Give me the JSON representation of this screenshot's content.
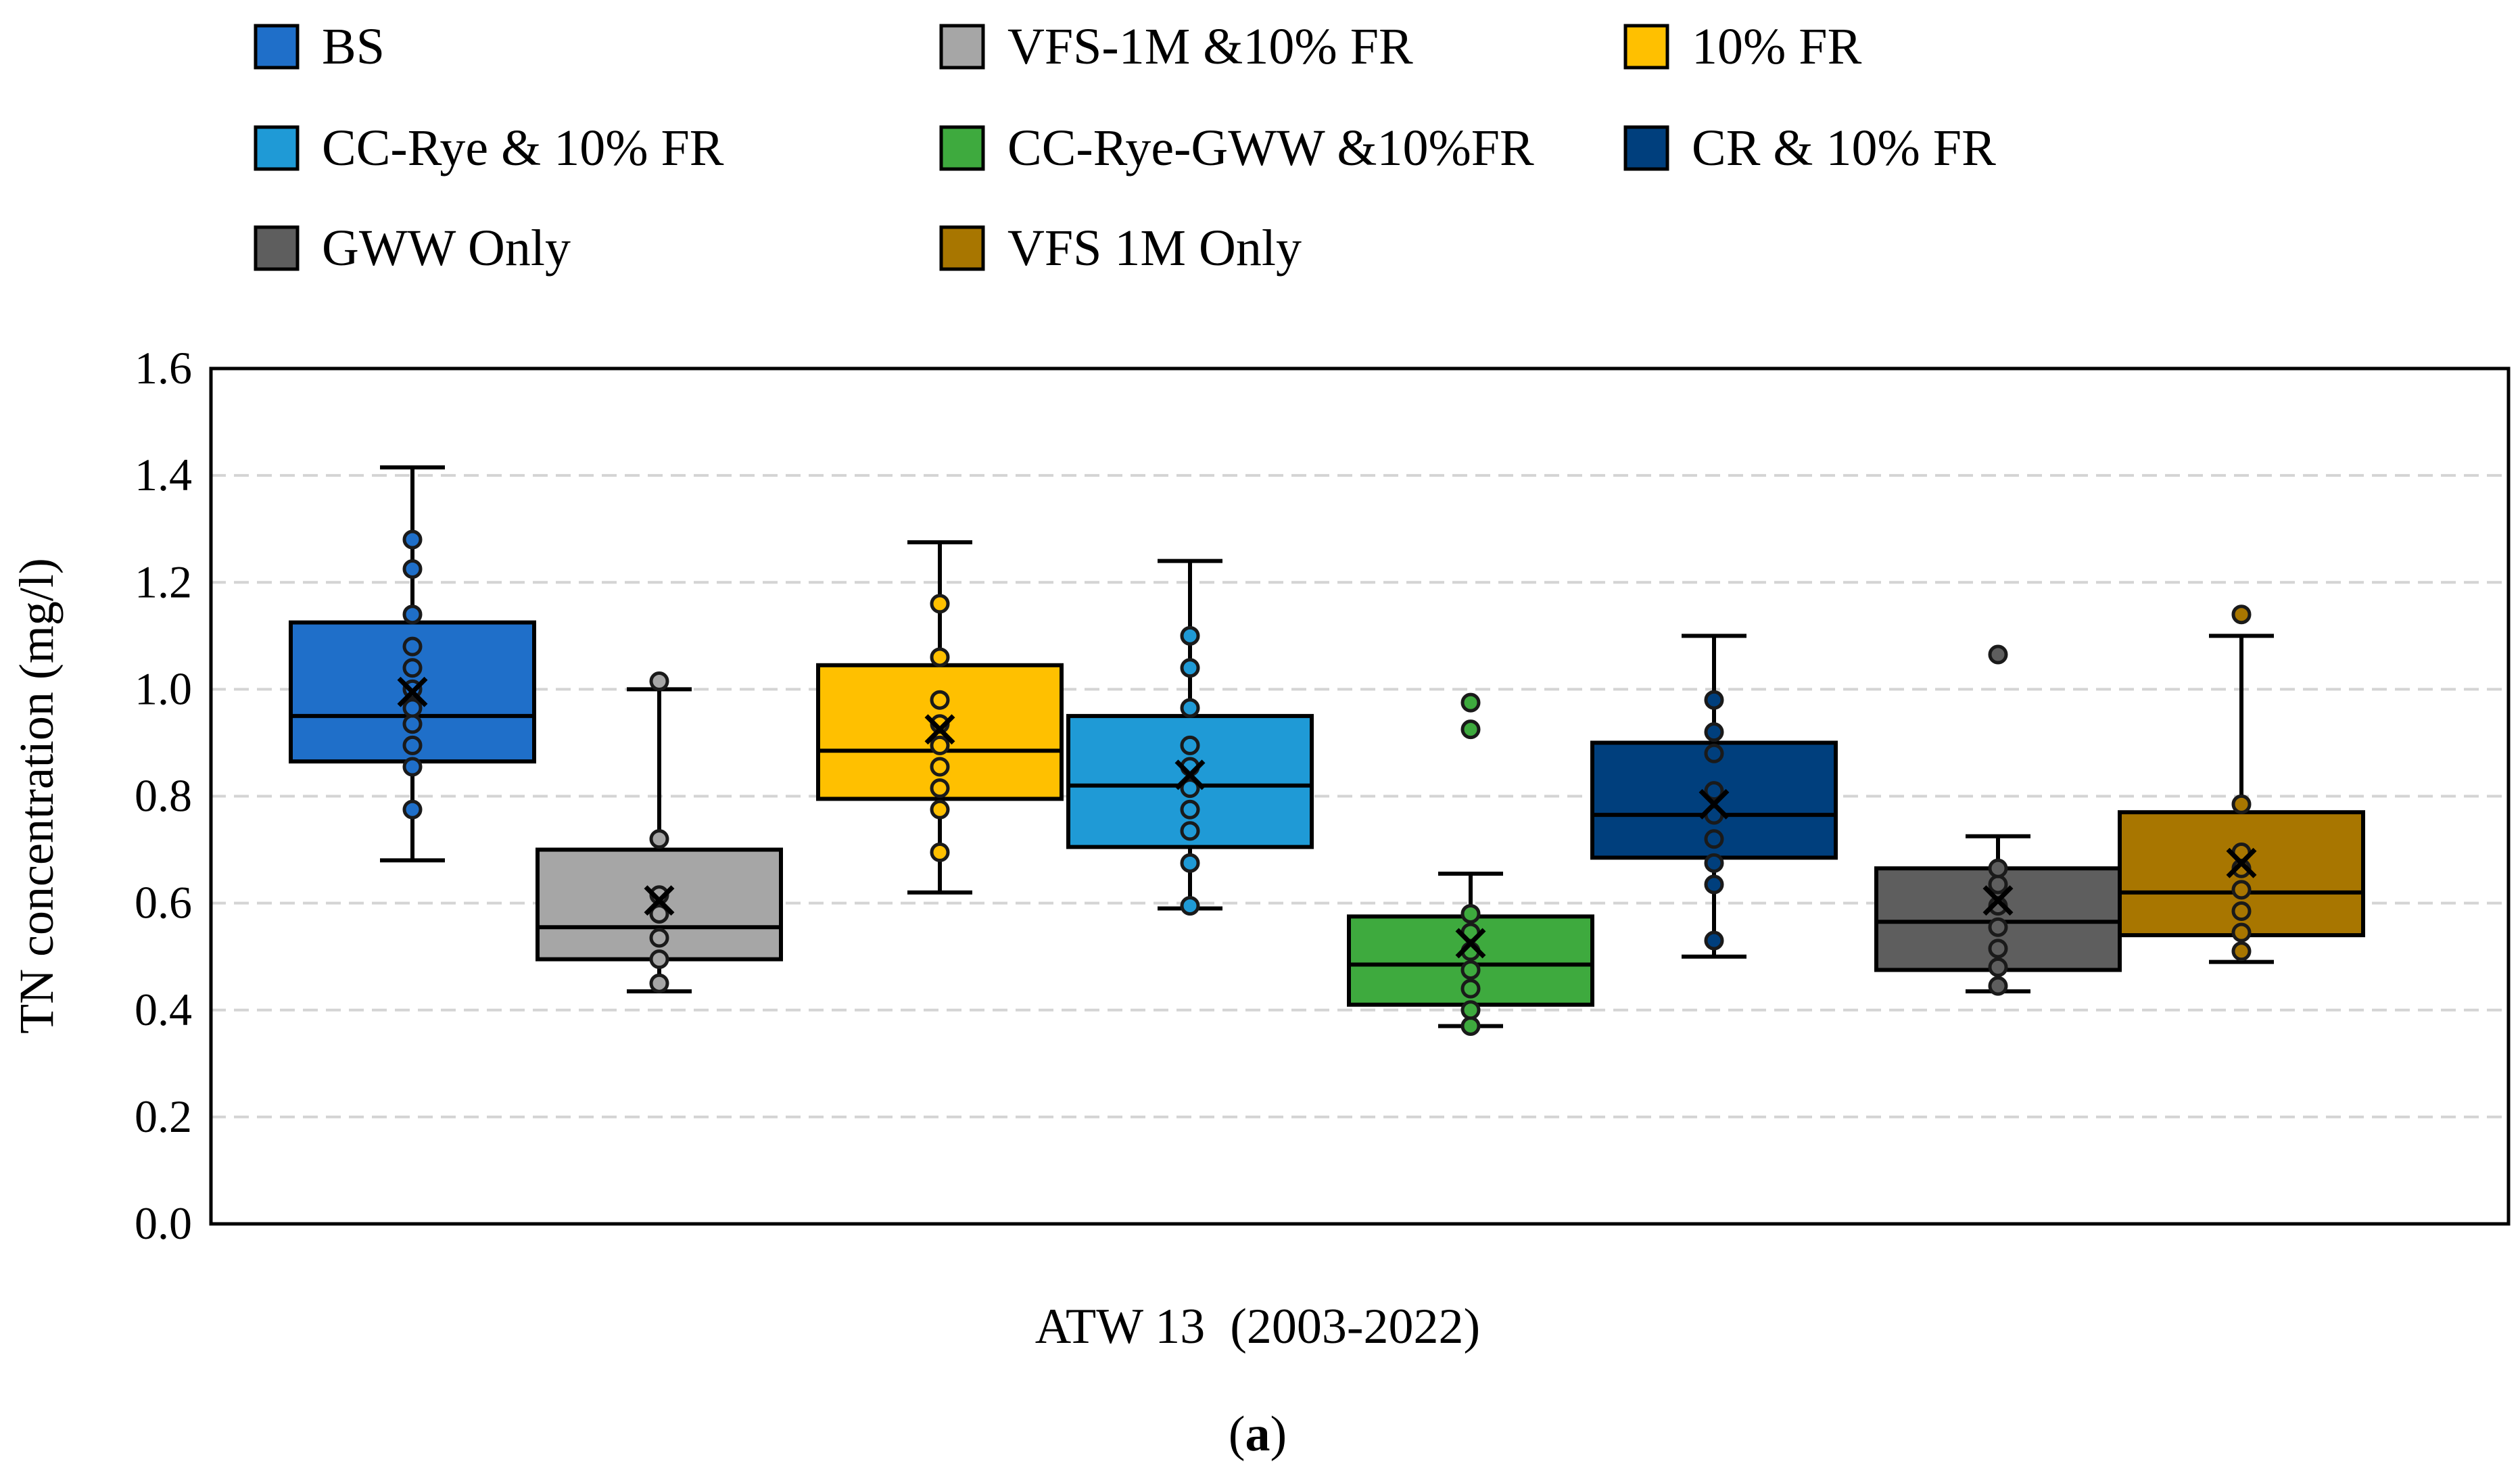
{
  "chart_data": {
    "type": "box",
    "title": "",
    "xlabel": "ATW 13  (2003-2022)",
    "ylabel": "TN concentration (mg/l)",
    "ylim": [
      0.0,
      1.6
    ],
    "yticks": [
      "0.0",
      "0.2",
      "0.4",
      "0.6",
      "0.8",
      "1.0",
      "1.2",
      "1.4",
      "1.6"
    ],
    "ytick_values": [
      0.0,
      0.2,
      0.4,
      0.6,
      0.8,
      1.0,
      1.2,
      1.4,
      1.6
    ],
    "grid": "horizontal dashed",
    "legend_position": "top",
    "caption_prefix": "(",
    "caption_letter": "a",
    "caption_suffix": ")",
    "series": [
      {
        "name": "BS",
        "color": "#1f6fc9",
        "whisker_low": 0.68,
        "q1": 0.865,
        "median": 0.95,
        "q3": 1.125,
        "whisker_high": 1.415,
        "mean": 0.995,
        "points": [
          0.775,
          0.855,
          0.895,
          0.935,
          0.965,
          1.0,
          1.04,
          1.08,
          1.14,
          1.225,
          1.28
        ]
      },
      {
        "name": "VFS-1M &10% FR",
        "color": "#a6a6a6",
        "whisker_low": 0.435,
        "q1": 0.495,
        "median": 0.555,
        "q3": 0.7,
        "whisker_high": 1.0,
        "mean": 0.605,
        "points": [
          0.45,
          0.495,
          0.535,
          0.58,
          0.615,
          0.72,
          1.015
        ]
      },
      {
        "name": "10% FR",
        "color": "#ffc000",
        "whisker_low": 0.62,
        "q1": 0.795,
        "median": 0.885,
        "q3": 1.045,
        "whisker_high": 1.275,
        "mean": 0.925,
        "points": [
          0.695,
          0.775,
          0.815,
          0.855,
          0.895,
          0.935,
          0.98,
          1.06,
          1.16
        ]
      },
      {
        "name": "CC-Rye & 10% FR",
        "color": "#1f9ad6",
        "whisker_low": 0.59,
        "q1": 0.705,
        "median": 0.82,
        "q3": 0.95,
        "whisker_high": 1.24,
        "mean": 0.84,
        "points": [
          0.595,
          0.675,
          0.735,
          0.775,
          0.815,
          0.855,
          0.895,
          0.965,
          1.04,
          1.1
        ]
      },
      {
        "name": "CC-Rye-GWW &10%FR",
        "color": "#3eaa3e",
        "whisker_low": 0.37,
        "q1": 0.41,
        "median": 0.485,
        "q3": 0.575,
        "whisker_high": 0.655,
        "mean": 0.525,
        "points": [
          0.37,
          0.4,
          0.44,
          0.475,
          0.51,
          0.545,
          0.58,
          0.925,
          0.975
        ]
      },
      {
        "name": "CR & 10% FR",
        "color": "#003f7d",
        "whisker_low": 0.5,
        "q1": 0.685,
        "median": 0.765,
        "q3": 0.9,
        "whisker_high": 1.1,
        "mean": 0.785,
        "points": [
          0.53,
          0.635,
          0.675,
          0.72,
          0.765,
          0.81,
          0.88,
          0.92,
          0.98
        ]
      },
      {
        "name": "GWW Only",
        "color": "#5e5e5e",
        "whisker_low": 0.435,
        "q1": 0.475,
        "median": 0.565,
        "q3": 0.665,
        "whisker_high": 0.725,
        "mean": 0.605,
        "points": [
          0.445,
          0.48,
          0.515,
          0.555,
          0.595,
          0.635,
          0.665,
          1.065
        ]
      },
      {
        "name": "VFS 1M Only",
        "color": "#a87600",
        "whisker_low": 0.49,
        "q1": 0.54,
        "median": 0.62,
        "q3": 0.77,
        "whisker_high": 1.1,
        "mean": 0.675,
        "points": [
          0.51,
          0.545,
          0.585,
          0.625,
          0.665,
          0.695,
          0.785,
          1.14
        ]
      }
    ]
  }
}
